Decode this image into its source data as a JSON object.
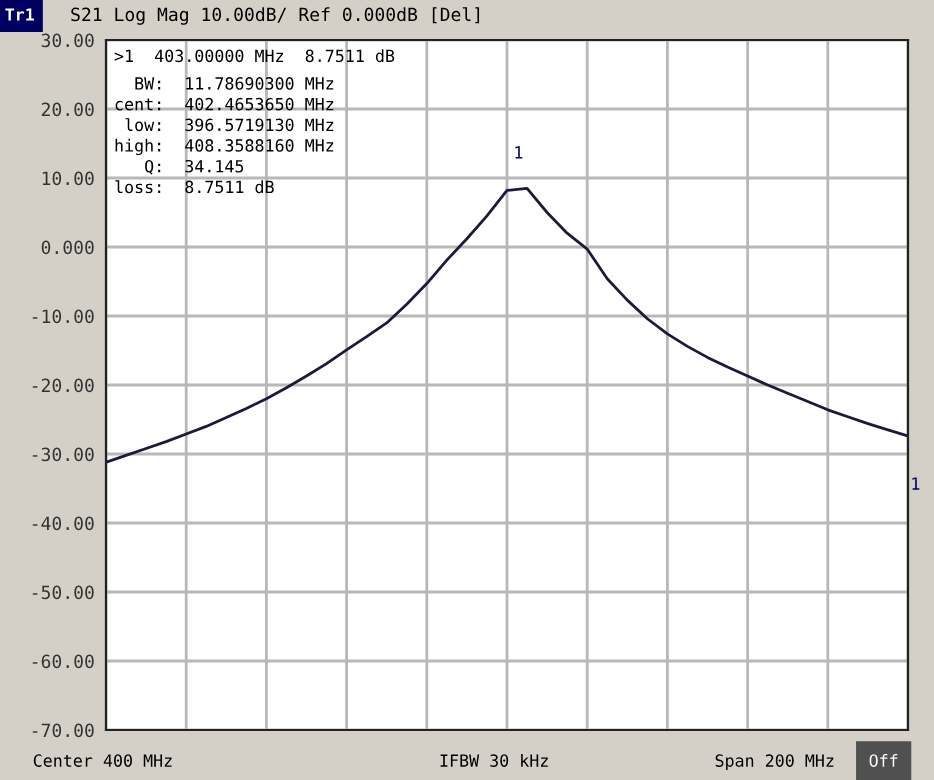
{
  "chart_data": {
    "type": "line",
    "title": "S21 Log Mag 10.00dB/ Ref 0.000dB [Del]",
    "categories": [
      null,
      null,
      null,
      null,
      null,
      null,
      null,
      null,
      null,
      null,
      null,
      null,
      null,
      null,
      null,
      null,
      null,
      null,
      null,
      null,
      null,
      null,
      null,
      null,
      null,
      null,
      null,
      null,
      null,
      null,
      null,
      null,
      null,
      null,
      null,
      null,
      null,
      null,
      null,
      null,
      null
    ],
    "ylim": [
      -70,
      30
    ],
    "yticks": [
      {
        "value": 30,
        "label": "30.00"
      },
      {
        "value": 20,
        "label": "20.00"
      },
      {
        "value": 10,
        "label": "10.00"
      },
      {
        "value": 0,
        "label": "0.000"
      },
      {
        "value": -10,
        "label": "-10.00"
      },
      {
        "value": -20,
        "label": "-20.00"
      },
      {
        "value": -30,
        "label": "-30.00"
      },
      {
        "value": -40,
        "label": "-40.00"
      },
      {
        "value": -50,
        "label": "-50.00"
      },
      {
        "value": -60,
        "label": "-60.00"
      },
      {
        "value": -70,
        "label": "-70.00"
      }
    ],
    "tick_labels": "y",
    "grid": true,
    "marker": "none",
    "line_style": "solid",
    "series": [
      {
        "color": "#1a1a3a",
        "values": [
          -31.2,
          -30.2,
          -29.2,
          -28.2,
          -27.1,
          -26,
          -24.7,
          -23.4,
          -22,
          -20.4,
          -18.7,
          -16.9,
          -14.9,
          -13,
          -11,
          -8.3,
          -5.3,
          -1.9,
          1.2,
          4.5,
          8.2,
          8.5,
          5,
          2,
          -0.3,
          -4.6,
          -7.7,
          -10.4,
          -12.6,
          -14.4,
          -16,
          -17.4,
          -18.7,
          -20,
          -21.2,
          -22.4,
          -23.6,
          -24.6,
          -25.6,
          -26.5,
          -27.4
        ]
      }
    ],
    "annotations": [
      "Tr1",
      ">1  403.00000 MHz  8.7511 dB",
      "  BW:  11.78690300 MHz",
      "cent:  402.4653650 MHz",
      " low:  396.5719130 MHz",
      "high:  408.3588160 MHz",
      "   Q:  34.145",
      "loss:  8.7511 dB",
      "Center 400 MHz",
      "IFBW 30 kHz",
      "Span 200 MHz",
      "Off",
      "1",
      "1"
    ]
  }
}
